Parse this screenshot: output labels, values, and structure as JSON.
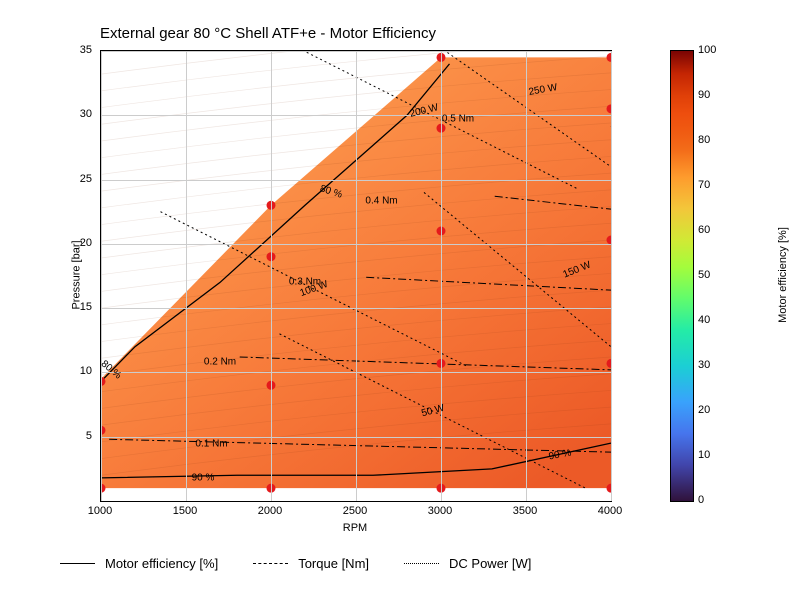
{
  "chart": {
    "type": "contour-map",
    "title": "External gear 80 °C Shell ATF+e - Motor Efficiency",
    "title_fontsize": 15,
    "xlabel": "RPM",
    "ylabel": "Pressure [bar]",
    "label_fontsize": 11,
    "xlim": [
      1000,
      4000
    ],
    "ylim": [
      0,
      35
    ],
    "xticks": [
      1000,
      1500,
      2000,
      2500,
      3000,
      3500,
      4000
    ],
    "yticks": [
      5,
      10,
      15,
      20,
      25,
      30,
      35
    ],
    "tick_fontsize": 11,
    "grid_color": "#cccccc",
    "background_color": "#ffffff",
    "border_color": "#000000",
    "fill_region": {
      "colormap": "turbo",
      "value_range": [
        78,
        92
      ],
      "dominant_colors": [
        "#fcae5a",
        "#fb9c4f",
        "#fa8a44",
        "#f77a3a",
        "#f26a30",
        "#ec5a27"
      ],
      "boundary_points_rpm_pressure": [
        [
          1000,
          1
        ],
        [
          1000,
          9.5
        ],
        [
          2000,
          23
        ],
        [
          3000,
          34.5
        ],
        [
          4000,
          34.5
        ],
        [
          4000,
          1
        ]
      ]
    },
    "scatter": {
      "marker": "circle",
      "color": "#e41a1c",
      "size": 9,
      "points_rpm_pressure": [
        [
          1000,
          1
        ],
        [
          1000,
          5.5
        ],
        [
          1000,
          9.3
        ],
        [
          2000,
          1
        ],
        [
          2000,
          9
        ],
        [
          2000,
          19
        ],
        [
          2000,
          23
        ],
        [
          3000,
          1
        ],
        [
          3000,
          10.7
        ],
        [
          3000,
          21
        ],
        [
          3000,
          29
        ],
        [
          3000,
          34.5
        ],
        [
          4000,
          1
        ],
        [
          4000,
          10.7
        ],
        [
          4000,
          20.3
        ],
        [
          4000,
          30.5
        ],
        [
          4000,
          34.5
        ]
      ]
    },
    "contours": {
      "efficiency": {
        "line_style": "solid",
        "line_width": 1.2,
        "color": "#000000",
        "labels": [
          {
            "text": "80 %",
            "rpm": 1060,
            "pressure": 10.2,
            "rotate": 40
          },
          {
            "text": "80 %",
            "rpm": 2350,
            "pressure": 24,
            "rotate": 18
          },
          {
            "text": "90 %",
            "rpm": 1600,
            "pressure": 1.8,
            "rotate": 0
          },
          {
            "text": "90 %",
            "rpm": 3700,
            "pressure": 3.6,
            "rotate": -10
          }
        ],
        "paths": [
          {
            "level": 80,
            "points": [
              [
                1000,
                9.3
              ],
              [
                1200,
                12
              ],
              [
                1700,
                17
              ],
              [
                2200,
                23
              ],
              [
                2800,
                30
              ],
              [
                3050,
                34
              ]
            ]
          },
          {
            "level": 90,
            "points": [
              [
                1000,
                1.8
              ],
              [
                1800,
                2.0
              ],
              [
                2600,
                2.0
              ],
              [
                3300,
                2.5
              ],
              [
                4000,
                4.5
              ]
            ]
          }
        ]
      },
      "torque": {
        "line_style": "dashdot",
        "line_width": 1.0,
        "color": "#000000",
        "labels": [
          {
            "text": "0.1 Nm",
            "rpm": 1650,
            "pressure": 4.4
          },
          {
            "text": "0.2 Nm",
            "rpm": 1700,
            "pressure": 10.8
          },
          {
            "text": "0.3 Nm",
            "rpm": 2200,
            "pressure": 17
          },
          {
            "text": "0.4 Nm",
            "rpm": 2650,
            "pressure": 23.3
          },
          {
            "text": "0.5 Nm",
            "rpm": 3100,
            "pressure": 29.7
          }
        ]
      },
      "power": {
        "line_style": "dotted",
        "line_width": 1.0,
        "color": "#000000",
        "labels": [
          {
            "text": "50 W",
            "rpm": 2950,
            "pressure": 7,
            "rotate": -15
          },
          {
            "text": "100 W",
            "rpm": 2250,
            "pressure": 16.5,
            "rotate": -20
          },
          {
            "text": "150 W",
            "rpm": 3800,
            "pressure": 18,
            "rotate": -22
          },
          {
            "text": "200 W",
            "rpm": 2900,
            "pressure": 30.3,
            "rotate": -14
          },
          {
            "text": "250 W",
            "rpm": 3600,
            "pressure": 32,
            "rotate": -10
          }
        ]
      }
    }
  },
  "colorbar": {
    "label": "Motor efficiency [%]",
    "ticks": [
      0,
      10,
      20,
      30,
      40,
      50,
      60,
      70,
      80,
      90,
      100
    ],
    "range": [
      0,
      100
    ]
  },
  "legend": {
    "items": [
      {
        "label": "Motor efficiency [%]",
        "style": "solid"
      },
      {
        "label": "Torque [Nm]",
        "style": "dashdot"
      },
      {
        "label": "DC Power [W]",
        "style": "dotted"
      }
    ]
  }
}
